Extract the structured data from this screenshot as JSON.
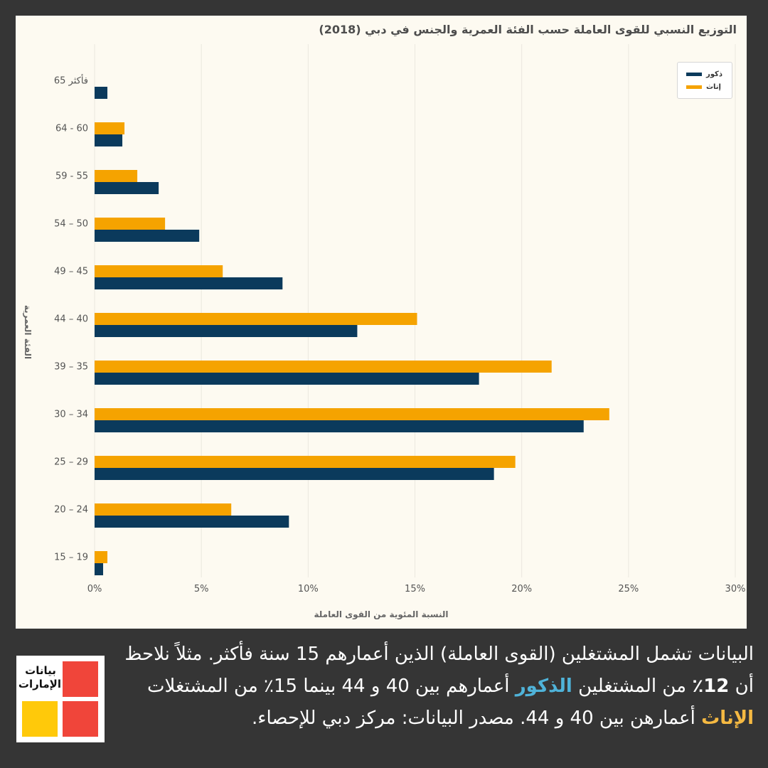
{
  "chart_data": {
    "type": "bar",
    "orientation": "horizontal",
    "title": "التوزيع النسبي للقوى العاملة حسب الفئة العمرية والجنس في دبي (2018)",
    "xlabel": "النسبة المئوية من القوى العاملة",
    "ylabel": "الفئة العمرية",
    "xlim": [
      0,
      30
    ],
    "x_ticks": [
      "0%",
      "5%",
      "10%",
      "15%",
      "20%",
      "25%",
      "30%"
    ],
    "grid": "vertical",
    "legend_position": "top-right",
    "categories": [
      "65 فأكثر",
      "64 - 60",
      "59 - 55",
      "54 – 50",
      "49 – 45",
      "44 – 40",
      "39 – 35",
      "30 – 34",
      "25 – 29",
      "20 – 24",
      "15 – 19"
    ],
    "series": [
      {
        "name": "ذكور",
        "color": "#0b3a5c",
        "values": [
          0.6,
          1.3,
          3.0,
          4.9,
          8.8,
          12.3,
          18.0,
          22.9,
          18.7,
          9.1,
          0.4
        ]
      },
      {
        "name": "إناث",
        "color": "#f5a300",
        "values": [
          0,
          1.4,
          2.0,
          3.3,
          6.0,
          15.1,
          21.4,
          24.1,
          19.7,
          6.4,
          0.6
        ]
      }
    ]
  },
  "caption": {
    "part1": "البيانات تشمل المشتغلين (القوى العاملة) الذين أعمارهم 15 سنة فأكثر. مثلاً نلاحظ أن ",
    "pct12": "12٪",
    "part2": " من المشتغلين ",
    "males": "الذكور",
    "part3": " أعمارهم بين 40 و 44 بينما 15٪ من المشتغلات ",
    "females": "الإناث",
    "part4": " أعمارهن بين 40 و 44. مصدر البيانات: مركز دبي للإحصاء.",
    "male_color": "#4fb3d9",
    "female_color": "#f5b942"
  },
  "logo": {
    "line1": "بيانات",
    "line2": "الإمارات",
    "colors": {
      "red": "#f0453a",
      "yellow": "#ffc90a"
    }
  }
}
